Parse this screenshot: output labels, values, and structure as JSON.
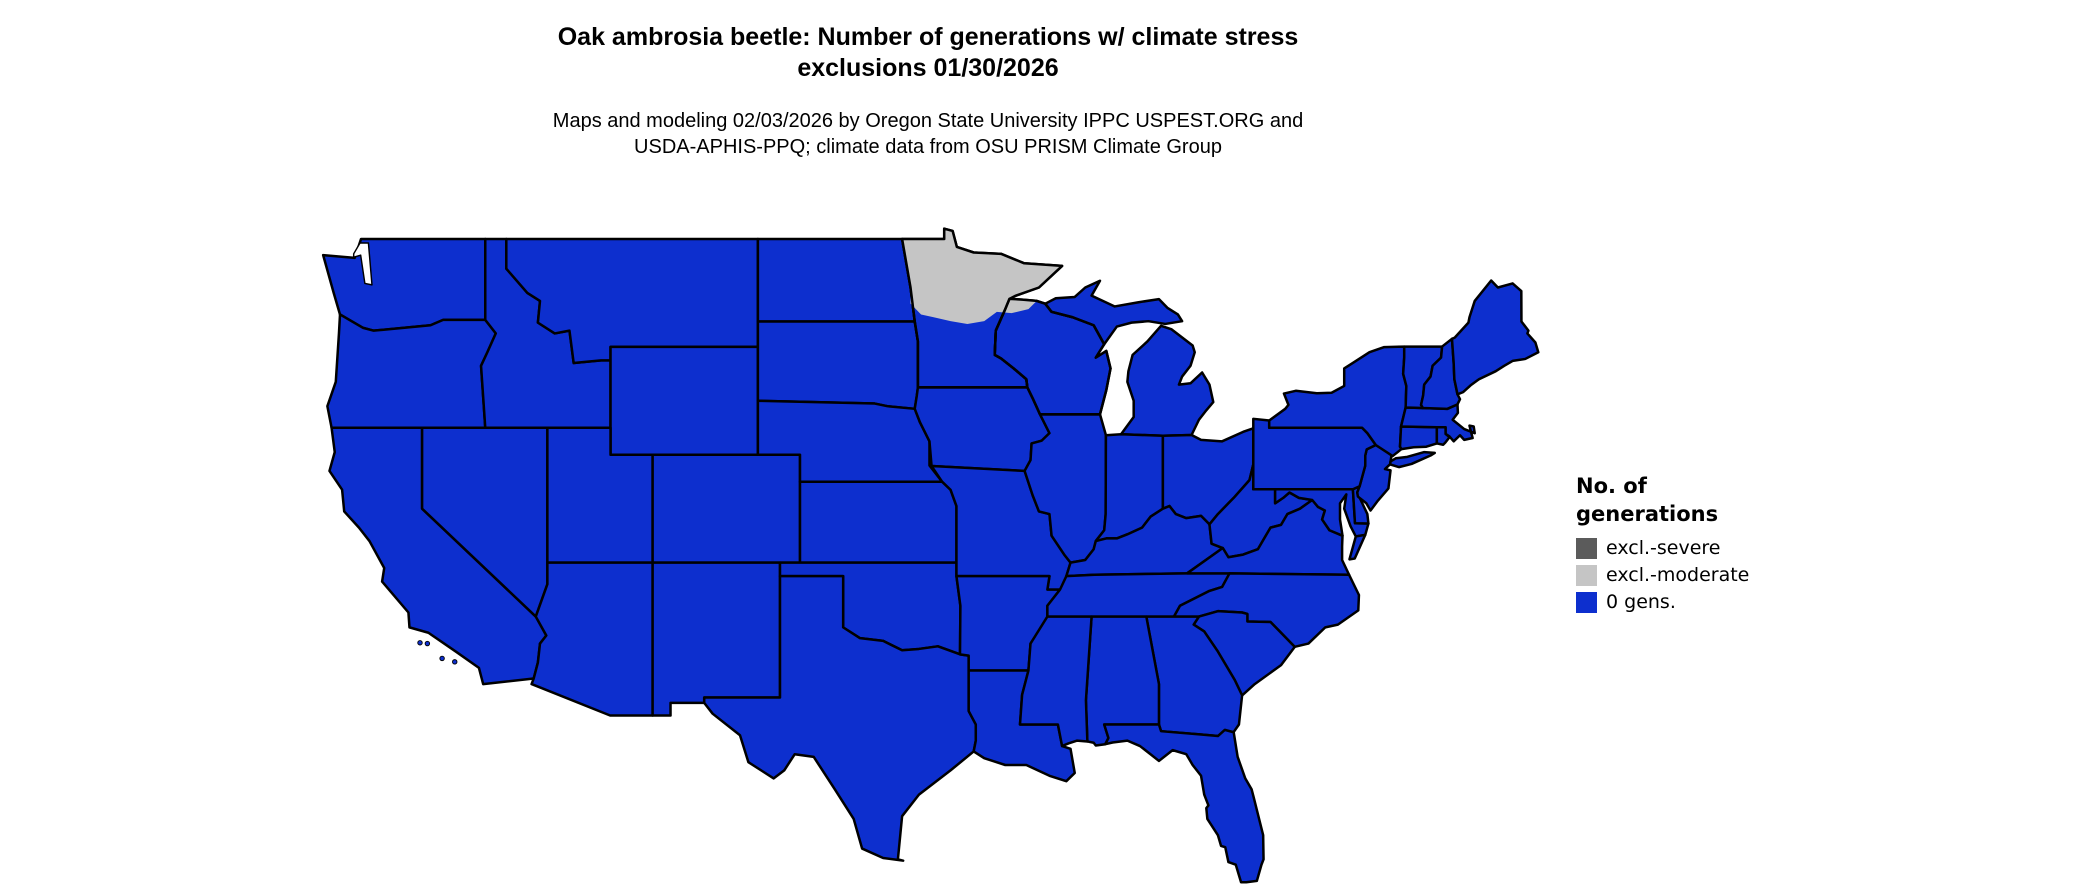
{
  "header": {
    "title_line1": "Oak ambrosia beetle: Number of generations w/ climate stress",
    "title_line2": "exclusions 01/30/2026",
    "subtitle_line1": "Maps and modeling 02/03/2026 by Oregon State University IPPC USPEST.ORG and",
    "subtitle_line2": "USDA-APHIS-PPQ; climate data from OSU PRISM Climate Group"
  },
  "legend": {
    "title_line1": "No. of",
    "title_line2": "generations",
    "items": [
      {
        "label": "excl.-severe",
        "color": "#5b5b5b"
      },
      {
        "label": "excl.-moderate",
        "color": "#c5c5c5"
      },
      {
        "label": "0 gens.",
        "color": "#0d2fce"
      }
    ]
  },
  "map": {
    "region_shown": "contiguous United States",
    "land_fill": "#0d2fce",
    "exclusion_fill": "#c5c5c5",
    "border_color": "#000000",
    "background": "#ffffff",
    "exclusion_area_note": "excl.-moderate band over northern Minnesota and far northern Wisconsin"
  }
}
